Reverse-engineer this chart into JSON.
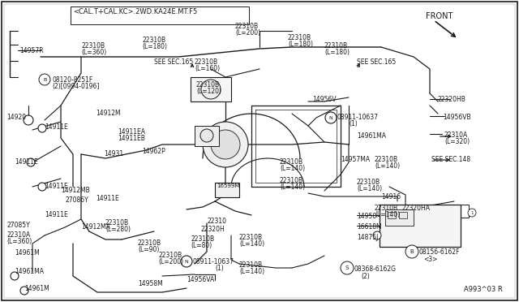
{
  "bg_color": "#ffffff",
  "line_color": "#1a1a1a",
  "text_color": "#1a1a1a",
  "fig_width": 6.4,
  "fig_height": 3.72,
  "dpi": 100,
  "header_text": "<CAL.T+CAL.KC>.2WD.KA24E.MT.F5",
  "diagram_id": "A993^03 R",
  "front_label": "FRONT"
}
